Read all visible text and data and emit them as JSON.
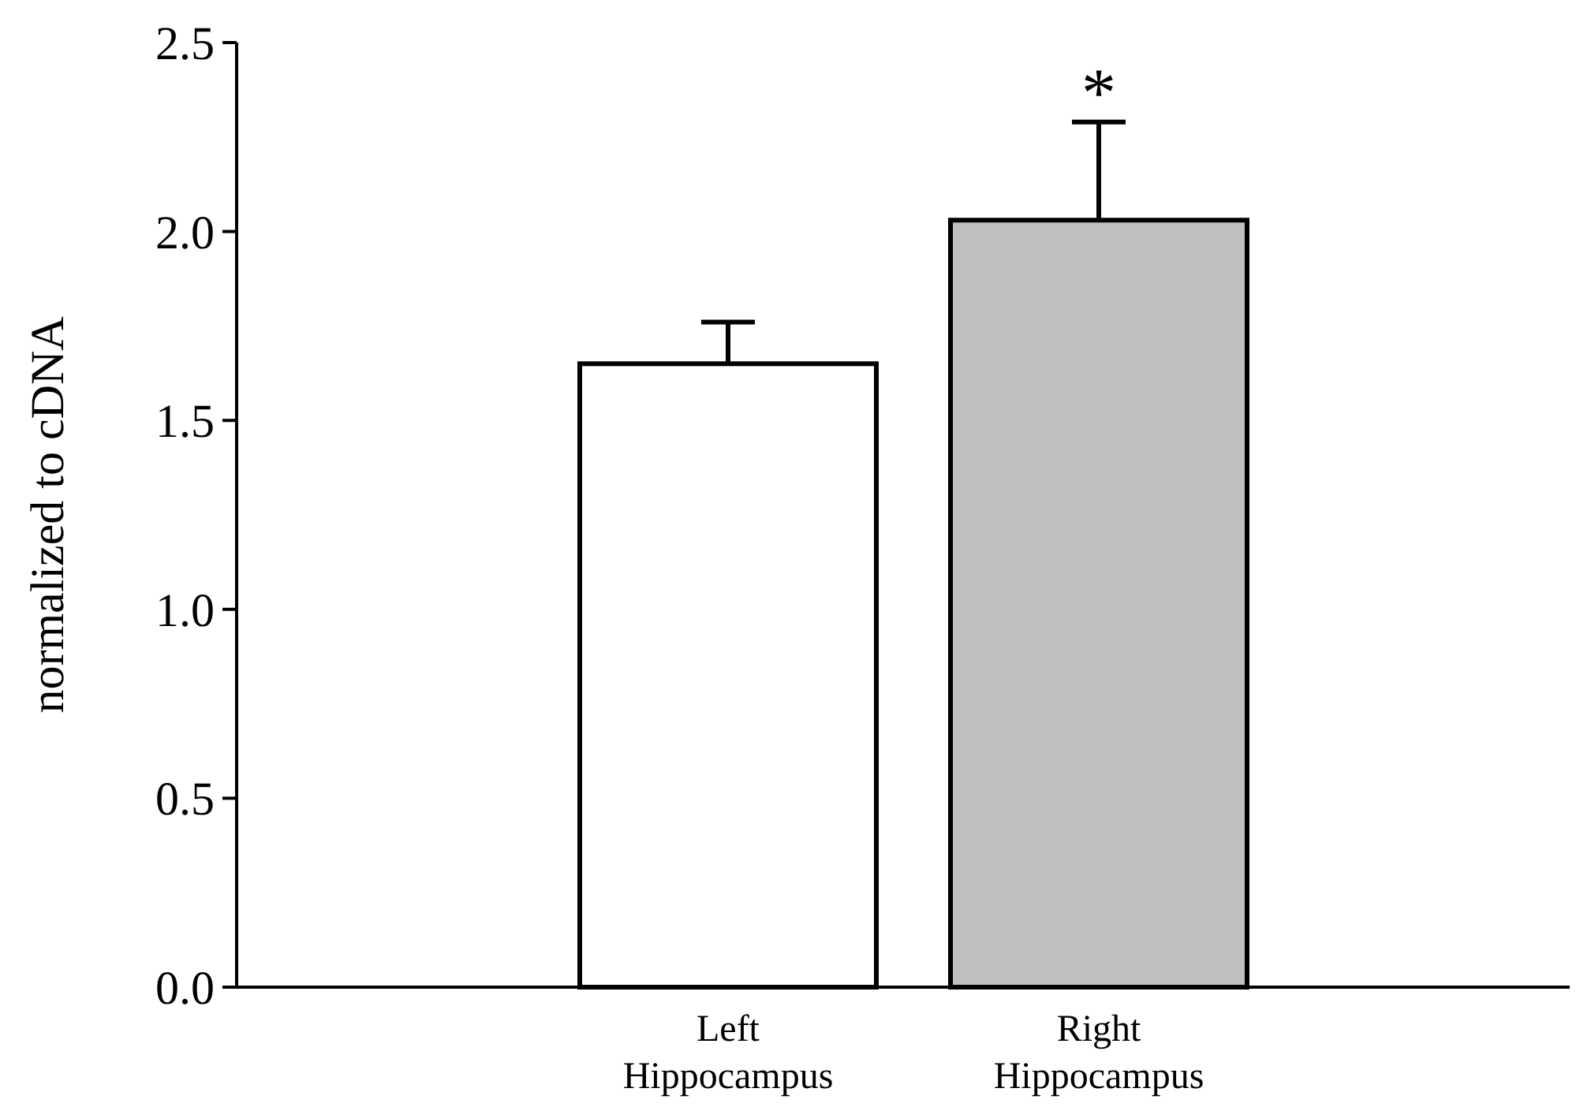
{
  "chart_data": {
    "type": "bar",
    "ylabel": "normalized to cDNA",
    "categories": [
      "Left Hippocampus",
      "Right Hippocampus"
    ],
    "values": [
      1.65,
      2.03
    ],
    "colors": [
      "#ffffff",
      "#c0c0c0"
    ],
    "errors": [
      0.11,
      0.26
    ],
    "ylim": [
      0,
      2.5
    ],
    "yticks": [
      {
        "value": 0,
        "label": "0.0"
      },
      {
        "value": 0.5,
        "label": "0.5"
      },
      {
        "value": 1,
        "label": "1.0"
      },
      {
        "value": 1.5,
        "label": "1.5"
      },
      {
        "value": 2,
        "label": "2.0"
      },
      {
        "value": 2.5,
        "label": "2.5"
      }
    ],
    "annotations": [
      {
        "text": "*",
        "x": "Right Hippocampus",
        "y": 2.29
      }
    ],
    "grid": false
  }
}
